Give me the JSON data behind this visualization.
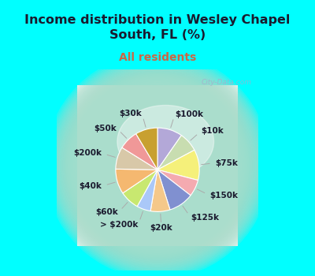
{
  "title": "Income distribution in Wesley Chapel\nSouth, FL (%)",
  "subtitle": "All residents",
  "watermark": "City-Data.com",
  "background_outer": "#00FFFF",
  "slices": [
    {
      "label": "$100k",
      "value": 9,
      "color": "#b3a8d8"
    },
    {
      "label": "$10k",
      "value": 7,
      "color": "#c8ddb0"
    },
    {
      "label": "$75k",
      "value": 11,
      "color": "#f5f07a"
    },
    {
      "label": "$150k",
      "value": 6,
      "color": "#f4aab0"
    },
    {
      "label": "$125k",
      "value": 9,
      "color": "#8090d0"
    },
    {
      "label": "$20k",
      "value": 7,
      "color": "#f5c88a"
    },
    {
      "label": "> $200k",
      "value": 5,
      "color": "#aac8f8"
    },
    {
      "label": "$60k",
      "value": 7,
      "color": "#c8e870"
    },
    {
      "label": "$40k",
      "value": 9,
      "color": "#f5b870"
    },
    {
      "label": "$200k",
      "value": 8,
      "color": "#d8c8a8"
    },
    {
      "label": "$50k",
      "value": 7,
      "color": "#f09898"
    },
    {
      "label": "$30k",
      "value": 8,
      "color": "#c8a030"
    }
  ],
  "title_color": "#1a1a2e",
  "subtitle_color": "#cc6644",
  "title_fontsize": 11.5,
  "subtitle_fontsize": 10,
  "label_fontsize": 7.5,
  "label_color": "#1a1a2e",
  "line_color": "#aaaaaa"
}
